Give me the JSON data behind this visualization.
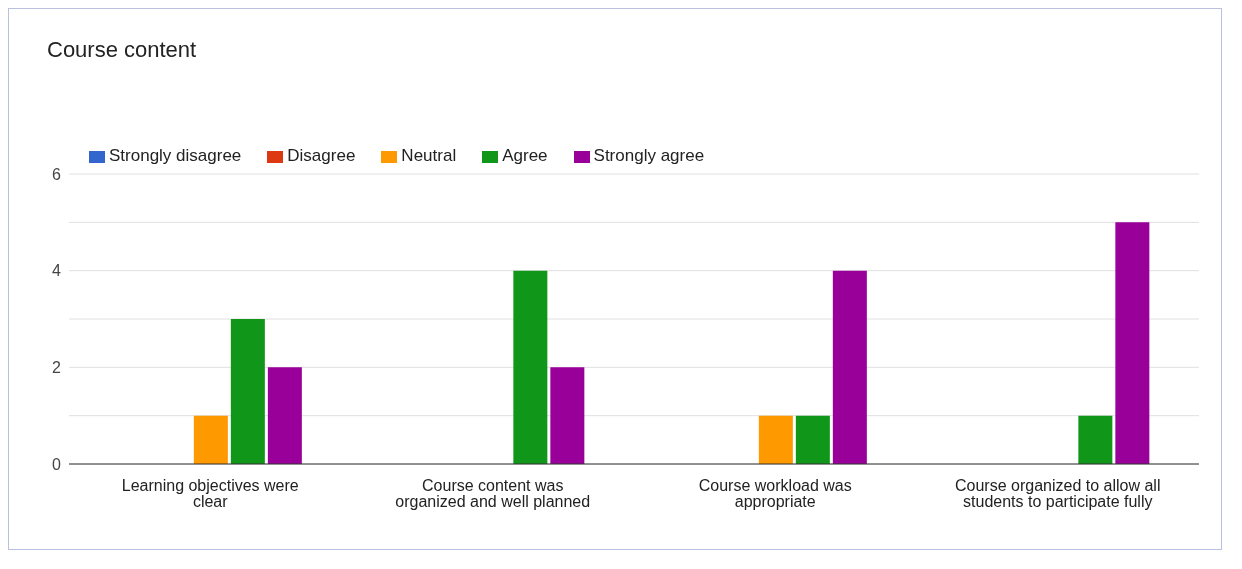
{
  "chart_data": {
    "type": "bar",
    "title": "Course content",
    "categories": [
      "Learning objectives were clear",
      "Course content was organized and well planned",
      "Course workload was appropriate",
      "Course organized to allow all students to participate fully"
    ],
    "series": [
      {
        "name": "Strongly disagree",
        "color": "#3366cc",
        "values": [
          0,
          0,
          0,
          0
        ]
      },
      {
        "name": "Disagree",
        "color": "#dc3912",
        "values": [
          0,
          0,
          0,
          0
        ]
      },
      {
        "name": "Neutral",
        "color": "#ff9900",
        "values": [
          1,
          0,
          1,
          0
        ]
      },
      {
        "name": "Agree",
        "color": "#109618",
        "values": [
          3,
          4,
          1,
          1
        ]
      },
      {
        "name": "Strongly agree",
        "color": "#990099",
        "values": [
          2,
          2,
          4,
          5
        ]
      }
    ],
    "ylim": [
      0,
      6
    ],
    "yticks": [
      0,
      {
        "value": 1,
        "label": null
      },
      2,
      {
        "value": 3,
        "label": null
      },
      4,
      {
        "value": 5,
        "label": null
      },
      6
    ],
    "grid": "y",
    "legend": "top left"
  }
}
